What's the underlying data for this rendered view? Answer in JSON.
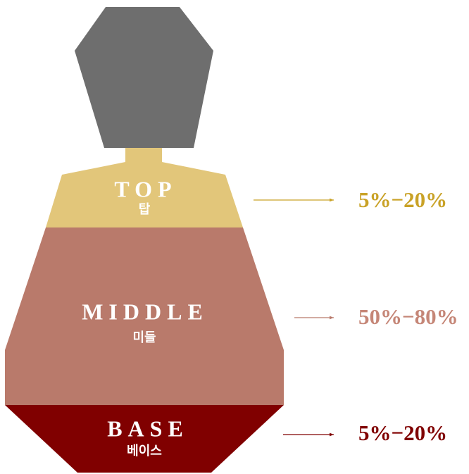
{
  "layers": [
    {
      "label": "TOP",
      "label_ko": "탑",
      "range": "5%−20%"
    },
    {
      "label": "MIDDLE",
      "label_ko": "미들",
      "range": "50%−80%"
    },
    {
      "label": "BASE",
      "label_ko": "베이스",
      "range": "5%−20%"
    }
  ]
}
